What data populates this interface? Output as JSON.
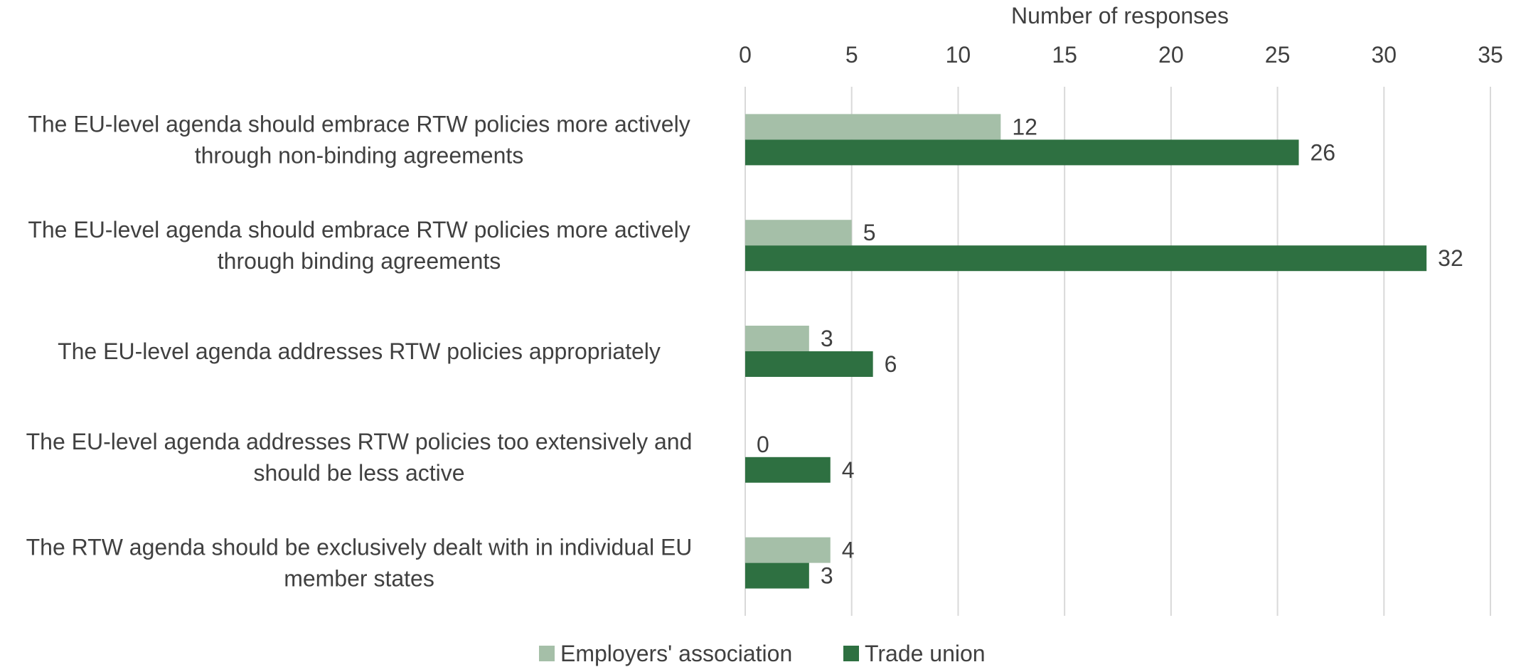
{
  "chart_data": {
    "type": "bar",
    "orientation": "horizontal",
    "title": "",
    "xlabel": "Number of responses",
    "ylabel": "",
    "xlim": [
      0,
      35
    ],
    "xticks": [
      0,
      5,
      10,
      15,
      20,
      25,
      30,
      35
    ],
    "grid": true,
    "legend_position": "bottom",
    "categories": [
      [
        "The EU-level agenda should embrace RTW policies more actively",
        "through non-binding agreements"
      ],
      [
        "The EU-level agenda should embrace RTW policies more actively",
        "through binding agreements"
      ],
      [
        "The EU-level agenda addresses RTW policies appropriately"
      ],
      [
        "The EU-level agenda addresses RTW policies too extensively and",
        "should be less active"
      ],
      [
        "The RTW agenda should be exclusively dealt with in individual EU",
        "member states"
      ]
    ],
    "series": [
      {
        "name": "Employers' association",
        "color": "#a5bfa8",
        "values": [
          12,
          5,
          3,
          0,
          4
        ]
      },
      {
        "name": "Trade union",
        "color": "#2e7041",
        "values": [
          26,
          32,
          6,
          4,
          3
        ]
      }
    ]
  }
}
